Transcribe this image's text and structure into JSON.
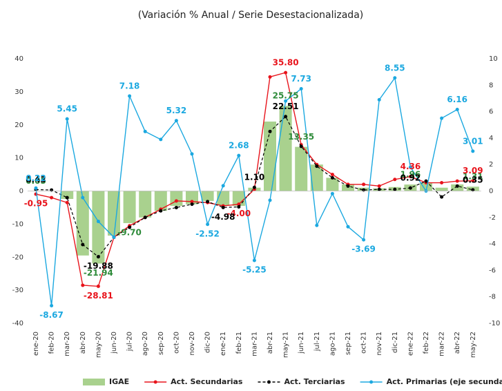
{
  "chart_data": {
    "type": "combo",
    "title": "(Variación % Anual / Serie Desestacionalizada)",
    "categories": [
      "ene-20",
      "feb-20",
      "mar-20",
      "abr-20",
      "may-20",
      "jun-20",
      "jul-20",
      "ago-20",
      "sep-20",
      "oct-20",
      "nov-20",
      "dic-20",
      "ene-21",
      "feb-21",
      "mar-21",
      "abr-21",
      "may-21",
      "jun-21",
      "jul-21",
      "ago-21",
      "sep-21",
      "oct-21",
      "nov-21",
      "dic-21",
      "ene-22",
      "feb-22",
      "mar-22",
      "abr-22",
      "may-22"
    ],
    "ylim": [
      -40,
      40
    ],
    "yticks": [
      -40,
      -30,
      -20,
      -10,
      0,
      10,
      20,
      30,
      40
    ],
    "y2lim": [
      -10,
      10
    ],
    "y2ticks": [
      -10,
      -8,
      -6,
      -4,
      -2,
      0,
      2,
      4,
      6,
      8,
      10
    ],
    "series": [
      {
        "name": "IGAE",
        "type": "bar",
        "color": "#a9d18e",
        "label_color": "#2e8b3a",
        "values": [
          0.05,
          0,
          -2.4,
          -19.5,
          -21.94,
          -13.5,
          -9.7,
          -8,
          -6,
          -4.5,
          -4,
          -3,
          -4.3,
          -4.5,
          1,
          21,
          25.75,
          13.35,
          8,
          4,
          2,
          1,
          0.8,
          1.2,
          1.96,
          2.5,
          1,
          2,
          1.31
        ],
        "value_labels": [
          "0.05",
          null,
          null,
          null,
          "-21.94",
          null,
          "-9.70",
          null,
          null,
          null,
          null,
          null,
          null,
          null,
          null,
          null,
          "25.75",
          "13.35",
          null,
          null,
          null,
          null,
          null,
          null,
          "1.96",
          null,
          null,
          null,
          "1.31"
        ]
      },
      {
        "name": "Act. Secundarias",
        "type": "line",
        "color": "#e8131b",
        "label_color": "#e8131b",
        "values": [
          -0.95,
          -2,
          -3.5,
          -28.5,
          -28.81,
          -14,
          -10.5,
          -8,
          -5.5,
          -3,
          -3.2,
          -3.5,
          -4.5,
          -4,
          0.5,
          34.5,
          35.8,
          14,
          8,
          5,
          2,
          2,
          1.5,
          3.5,
          4.36,
          2.5,
          2.5,
          3,
          3.09
        ],
        "value_labels": [
          "-0.95",
          null,
          null,
          null,
          "-28.81",
          null,
          null,
          null,
          null,
          null,
          null,
          null,
          null,
          "-4.00",
          null,
          null,
          "35.80",
          null,
          null,
          null,
          null,
          null,
          null,
          null,
          "4.36",
          null,
          null,
          null,
          "3.09"
        ]
      },
      {
        "name": "Act. Terciarias",
        "type": "line",
        "dashed": true,
        "color": "#000000",
        "label_color": "#000000",
        "values": [
          0.43,
          0.3,
          -2,
          -16.2,
          -19.88,
          -14,
          -11,
          -8,
          -6,
          -5,
          -4,
          -3.2,
          -4.98,
          -4.8,
          1.1,
          18,
          22.51,
          13.5,
          7.5,
          4,
          1.5,
          0.3,
          0.5,
          0.5,
          0.92,
          3,
          -1.8,
          1.5,
          0.35
        ],
        "value_labels": [
          "0.43",
          null,
          null,
          null,
          "-19.88",
          null,
          null,
          null,
          null,
          null,
          null,
          null,
          "-4.98",
          null,
          "1.10",
          null,
          "22.51",
          null,
          null,
          null,
          null,
          null,
          null,
          null,
          "0.92",
          null,
          null,
          null,
          "0.35"
        ]
      },
      {
        "name": "Act. Primarias (eje secundario)",
        "type": "line",
        "axis": "y2",
        "color": "#1ba8e0",
        "label_color": "#1ba8e0",
        "values": [
          0.22,
          -8.67,
          5.45,
          -0.5,
          -2.3,
          -3.5,
          7.18,
          4.5,
          3.9,
          5.32,
          2.8,
          -2.52,
          0.4,
          2.68,
          -5.25,
          -0.7,
          6.8,
          7.73,
          -2.6,
          -0.2,
          -2.7,
          -3.69,
          6.9,
          8.55,
          1.8,
          0,
          5.5,
          6.16,
          3.01
        ],
        "value_labels": [
          "0.22",
          "-8.67",
          "5.45",
          null,
          null,
          null,
          "7.18",
          null,
          null,
          "5.32",
          null,
          "-2.52",
          null,
          "2.68",
          "-5.25",
          null,
          null,
          "7.73",
          null,
          null,
          null,
          "-3.69",
          null,
          "8.55",
          null,
          null,
          null,
          "6.16",
          "3.01"
        ]
      }
    ]
  }
}
